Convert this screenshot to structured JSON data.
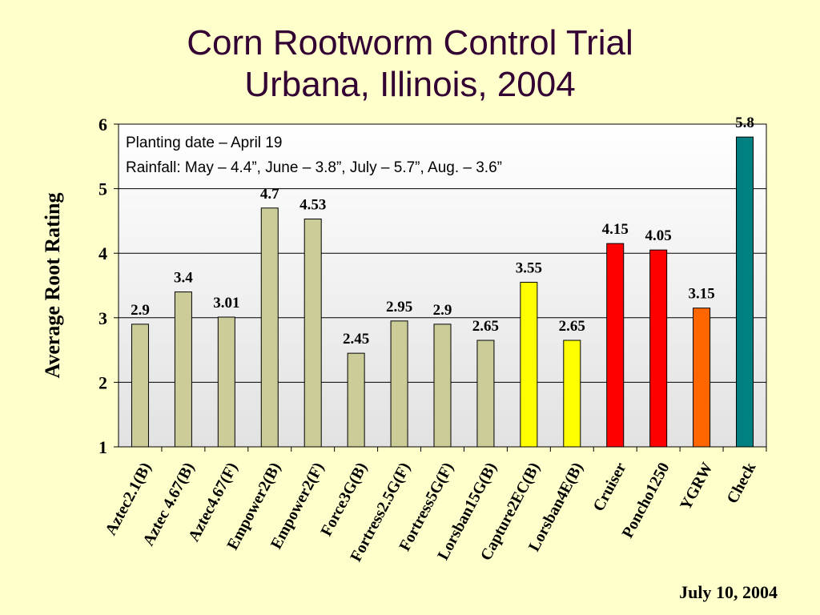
{
  "slide": {
    "title_line1": "Corn Rootworm Control Trial",
    "title_line2": "Urbana, Illinois, 2004",
    "date": "July 10, 2004"
  },
  "chart_data": {
    "type": "bar",
    "ylabel": "Average Root Rating",
    "ylim": [
      1,
      6
    ],
    "yticks": [
      1,
      2,
      3,
      4,
      5,
      6
    ],
    "grid": true,
    "annotation_lines": [
      "Planting date – April 19",
      "Rainfall: May – 4.4”, June – 3.8”, July – 5.7”, Aug. – 3.6”"
    ],
    "categories": [
      "Aztec2.1(B)",
      "Aztec 4.67(B)",
      "Aztec4.67(F)",
      "Empower2(B)",
      "Empower2(F)",
      "Force3G(B)",
      "Fortress2.5G(F)",
      "Fortress5G(F)",
      "Lorsban15G(B)",
      "Capture2EC(B)",
      "Lorsban4E(B)",
      "Cruiser",
      "Poncho1250",
      "YGRW",
      "Check"
    ],
    "values": [
      2.9,
      3.4,
      3.01,
      4.7,
      4.53,
      2.45,
      2.95,
      2.9,
      2.65,
      3.55,
      2.65,
      4.15,
      4.05,
      3.15,
      5.8
    ],
    "value_labels": [
      "2.9",
      "3.4",
      "3.01",
      "4.7",
      "4.53",
      "2.45",
      "2.95",
      "2.9",
      "2.65",
      "3.55",
      "2.65",
      "4.15",
      "4.05",
      "3.15",
      "5.8"
    ],
    "colors": [
      "#cccc99",
      "#cccc99",
      "#cccc99",
      "#cccc99",
      "#cccc99",
      "#cccc99",
      "#cccc99",
      "#cccc99",
      "#cccc99",
      "#ffff00",
      "#ffff00",
      "#ff0000",
      "#ff0000",
      "#ff6600",
      "#008080"
    ]
  }
}
